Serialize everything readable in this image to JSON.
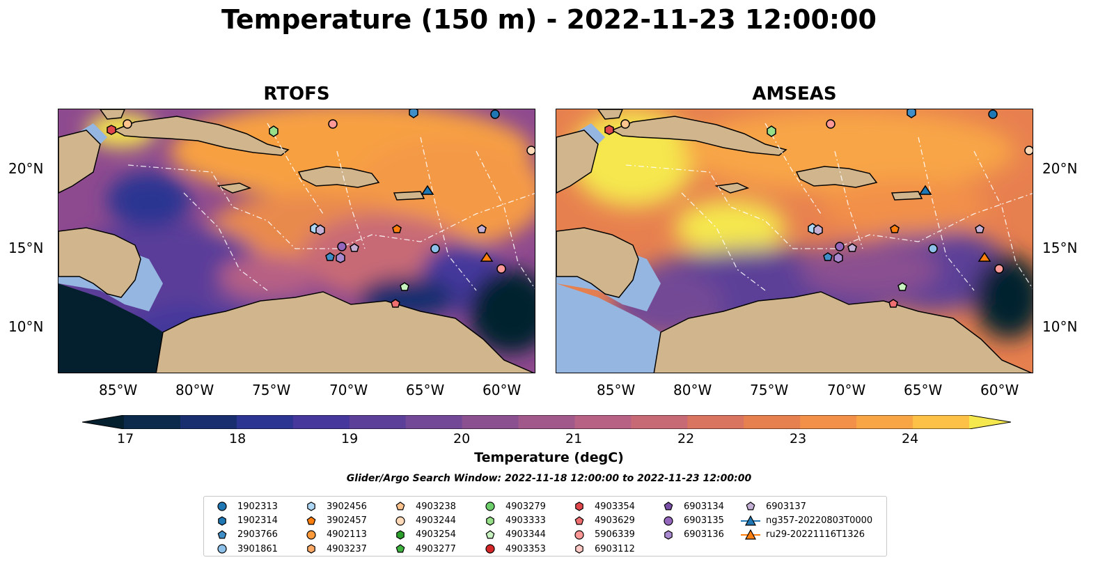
{
  "title": "Temperature (150 m) - 2022-11-23 12:00:00",
  "panels": [
    {
      "title": "RTOFS"
    },
    {
      "title": "AMSEAS"
    }
  ],
  "lat_labels": [
    "20°N",
    "15°N",
    "10°N"
  ],
  "lon_labels": [
    "85°W",
    "80°W",
    "75°W",
    "70°W",
    "65°W",
    "60°W"
  ],
  "colorbar": {
    "label": "Temperature (degC)",
    "ticks": [
      "17",
      "18",
      "19",
      "20",
      "21",
      "22",
      "23",
      "24"
    ],
    "colors": [
      "#04202f",
      "#0b2a4c",
      "#182e6e",
      "#2c3592",
      "#45379b",
      "#5c3f98",
      "#734896",
      "#8a5090",
      "#a0598a",
      "#b76184",
      "#c86a76",
      "#d8745f",
      "#e7804f",
      "#f2904a",
      "#f8a546",
      "#fcc146",
      "#f5e74e"
    ]
  },
  "search_window": "Glider/Argo Search Window: 2022-11-18 12:00:00 to 2022-11-23 12:00:00",
  "legend": {
    "items": [
      {
        "label": "1902313",
        "shape": "circle",
        "color": "#1f77b4"
      },
      {
        "label": "1902314",
        "shape": "hexagon",
        "color": "#1f77b4"
      },
      {
        "label": "2903766",
        "shape": "pentagon",
        "color": "#3f8ec8"
      },
      {
        "label": "3901861",
        "shape": "circle",
        "color": "#8ec1ea"
      },
      {
        "label": "3902456",
        "shape": "hexagon",
        "color": "#aed6f5"
      },
      {
        "label": "3902457",
        "shape": "pentagon",
        "color": "#ff7f0e"
      },
      {
        "label": "4902113",
        "shape": "circle",
        "color": "#ff9a3a"
      },
      {
        "label": "4903237",
        "shape": "hexagon",
        "color": "#ffaa66"
      },
      {
        "label": "4903238",
        "shape": "pentagon",
        "color": "#ffc48e"
      },
      {
        "label": "4903244",
        "shape": "circle",
        "color": "#ffd9b8"
      },
      {
        "label": "4903254",
        "shape": "hexagon",
        "color": "#2ca02c"
      },
      {
        "label": "4903277",
        "shape": "pentagon",
        "color": "#3fb43f"
      },
      {
        "label": "4903279",
        "shape": "circle",
        "color": "#6ccf6c"
      },
      {
        "label": "4903333",
        "shape": "hexagon",
        "color": "#98df8a"
      },
      {
        "label": "4903344",
        "shape": "pentagon",
        "color": "#c8f3c0"
      },
      {
        "label": "4903353",
        "shape": "circle",
        "color": "#d62728"
      },
      {
        "label": "4903354",
        "shape": "hexagon",
        "color": "#e0474a"
      },
      {
        "label": "4903629",
        "shape": "pentagon",
        "color": "#ef6f70"
      },
      {
        "label": "5906339",
        "shape": "circle",
        "color": "#ff9896"
      },
      {
        "label": "6903112",
        "shape": "hexagon",
        "color": "#ffc9c6"
      },
      {
        "label": "6903134",
        "shape": "pentagon",
        "color": "#7a4fa8"
      },
      {
        "label": "6903135",
        "shape": "circle",
        "color": "#9467bd"
      },
      {
        "label": "6903136",
        "shape": "hexagon",
        "color": "#a989d0"
      },
      {
        "label": "6903137",
        "shape": "pentagon",
        "color": "#c5b0d5"
      },
      {
        "label": "ng357-20220803T0000",
        "shape": "triangle-line",
        "color": "#1f77b4"
      },
      {
        "label": "ru29-20221116T1326",
        "shape": "triangle-line",
        "color": "#ff7f0e"
      }
    ]
  }
}
